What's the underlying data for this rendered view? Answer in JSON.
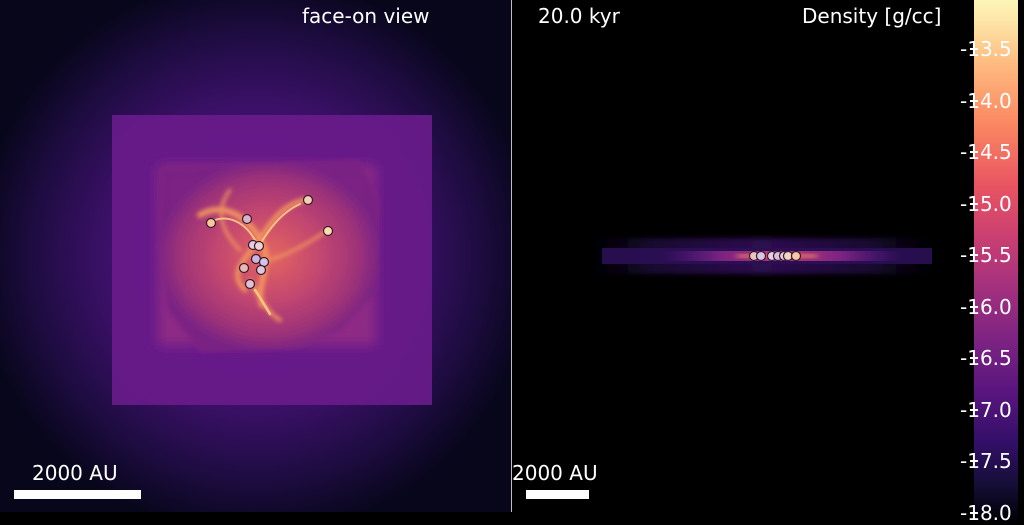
{
  "face_panel": {
    "title": "face-on view",
    "scale_label": "2000 AU"
  },
  "edge_panel": {
    "time_label": "20.0 kyr",
    "scale_label": "2000 AU"
  },
  "colorbar": {
    "title": "Density [g/cc]",
    "colormap": "magma",
    "ticks": [
      "-13.5",
      "-14.0",
      "-14.5",
      "-15.0",
      "-15.5",
      "-16.0",
      "-16.5",
      "-17.0",
      "-17.5",
      "-18.0"
    ]
  }
}
